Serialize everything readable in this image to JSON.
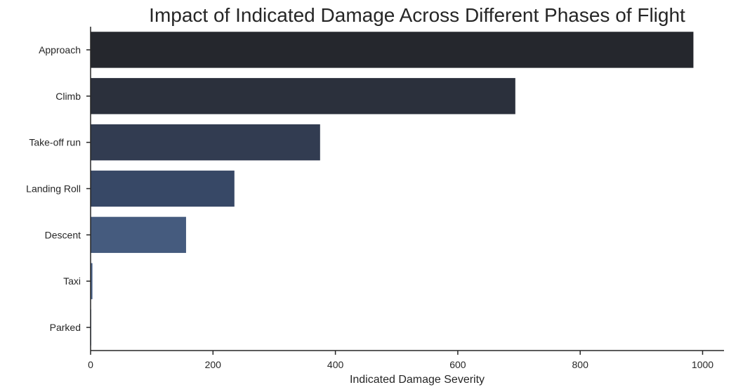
{
  "chart_data": {
    "type": "bar",
    "orientation": "horizontal",
    "title": "Impact of Indicated Damage Across Different Phases of Flight",
    "xlabel": "Indicated Damage Severity",
    "ylabel": "",
    "categories": [
      "Approach",
      "Climb",
      "Take-off run",
      "Landing Roll",
      "Descent",
      "Taxi",
      "Parked"
    ],
    "values": [
      985,
      694,
      375,
      235,
      156,
      3,
      1
    ],
    "colors": [
      "#25272d",
      "#2b303c",
      "#323c51",
      "#374866",
      "#455b7e",
      "#4a638b",
      "#4c6690"
    ],
    "xlim": [
      0,
      1035
    ],
    "xticks": [
      0,
      200,
      400,
      600,
      800,
      1000
    ],
    "grid": false
  }
}
